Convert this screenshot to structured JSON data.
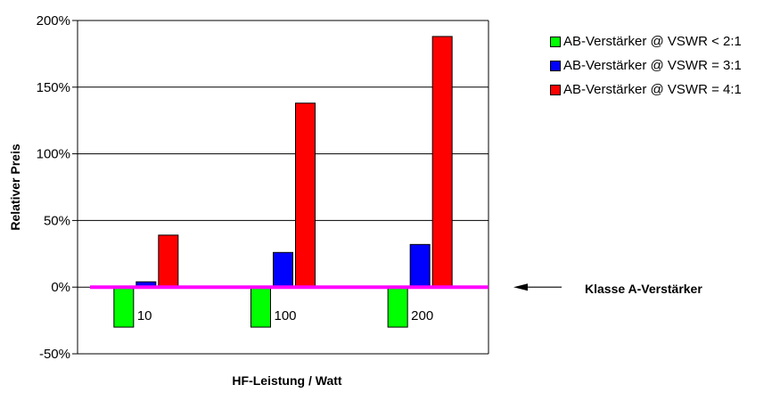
{
  "chart_data": {
    "type": "bar",
    "title": "",
    "xlabel": "HF-Leistung / Watt",
    "ylabel": "Relativer Preis",
    "categories": [
      "10",
      "100",
      "200"
    ],
    "ylim": [
      -50,
      200
    ],
    "yticks": [
      -50,
      0,
      50,
      100,
      150,
      200
    ],
    "ytick_labels": [
      "-50%",
      "0%",
      "50%",
      "100%",
      "150%",
      "200%"
    ],
    "grid": true,
    "legend_position": "right",
    "series": [
      {
        "name": "AB-Verstärker @ VSWR < 2:1",
        "color": "#00ff00",
        "values": [
          -30,
          -30,
          -30
        ]
      },
      {
        "name": "AB-Verstärker @ VSWR = 3:1",
        "color": "#0000ff",
        "values": [
          4,
          26,
          32
        ]
      },
      {
        "name": "AB-Verstärker @ VSWR = 4:1",
        "color": "#ff0000",
        "values": [
          39,
          138,
          188
        ]
      }
    ],
    "baseline": {
      "value": 0,
      "color": "#ff00ff"
    },
    "annotation": {
      "text": "Klasse A-Verstärker",
      "arrow": "left"
    }
  }
}
